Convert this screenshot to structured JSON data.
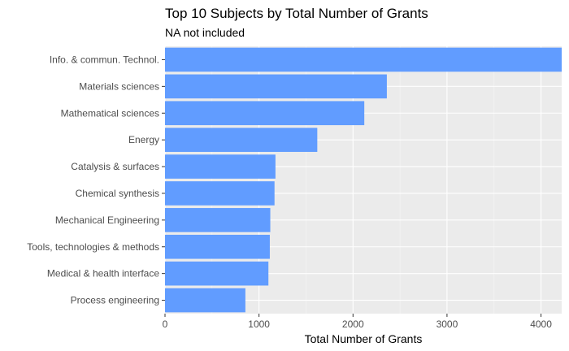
{
  "chart_data": {
    "type": "bar",
    "orientation": "horizontal",
    "title": "Top 10 Subjects by Total Number of Grants",
    "subtitle": "NA not included",
    "xlabel": "Total Number of Grants",
    "ylabel": "",
    "categories": [
      "Info. & commun. Technol.",
      "Materials sciences",
      "Mathematical sciences",
      "Energy",
      "Catalysis & surfaces",
      "Chemical synthesis",
      "Mechanical Engineering",
      "Tools, technologies & methods",
      "Medical & health interface",
      "Process engineering"
    ],
    "values": [
      4220,
      2360,
      2120,
      1620,
      1175,
      1165,
      1120,
      1115,
      1100,
      855
    ],
    "xlim": [
      0,
      4220
    ],
    "xticks": [
      0,
      1000,
      2000,
      3000,
      4000
    ],
    "xtick_labels": [
      "0",
      "1000",
      "2000",
      "3000",
      "4000"
    ],
    "grid": true,
    "legend": "none",
    "colors": {
      "bar": "#619CFF",
      "panel": "#EBEBEB",
      "grid_major": "#FFFFFF",
      "grid_minor": "#F5F5F5"
    }
  }
}
